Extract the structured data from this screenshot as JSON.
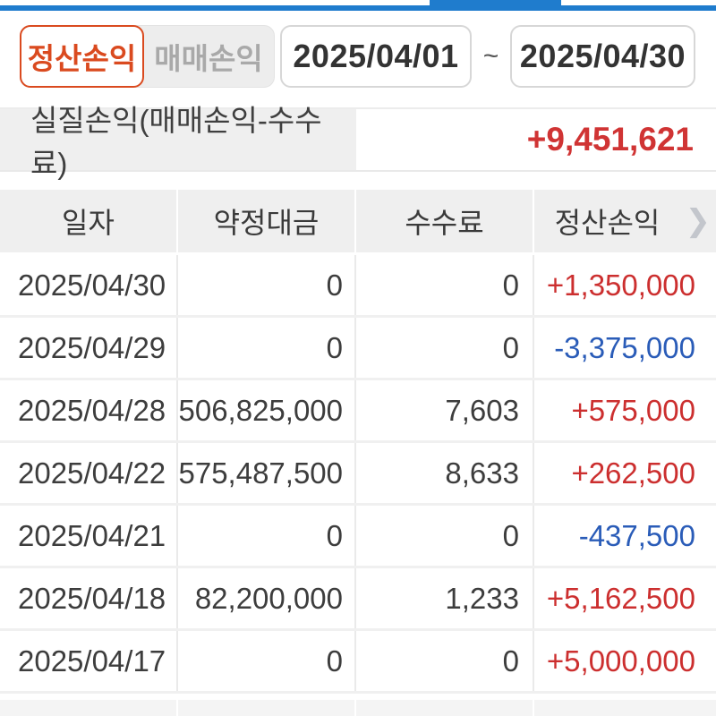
{
  "topbar": {
    "accent_color": "#1f7ccd"
  },
  "tabs": [
    {
      "label": "정산손익",
      "active": true
    },
    {
      "label": "매매손익",
      "active": false
    }
  ],
  "date_range": {
    "start": "2025/04/01",
    "separator": "~",
    "end": "2025/04/30"
  },
  "summary": {
    "label": "실질손익(매매손익-수수료)",
    "value": "+9,451,621"
  },
  "table": {
    "headers": [
      "일자",
      "약정대금",
      "수수료",
      "정산손익"
    ],
    "more_chevron": "❯",
    "rows": [
      {
        "date": "2025/04/30",
        "amount": "0",
        "fee": "0",
        "pl": "+1,350,000",
        "pl_type": "profit"
      },
      {
        "date": "2025/04/29",
        "amount": "0",
        "fee": "0",
        "pl": "-3,375,000",
        "pl_type": "loss"
      },
      {
        "date": "2025/04/28",
        "amount": "506,825,000",
        "fee": "7,603",
        "pl": "+575,000",
        "pl_type": "profit"
      },
      {
        "date": "2025/04/22",
        "amount": "575,487,500",
        "fee": "8,633",
        "pl": "+262,500",
        "pl_type": "profit"
      },
      {
        "date": "2025/04/21",
        "amount": "0",
        "fee": "0",
        "pl": "-437,500",
        "pl_type": "loss"
      },
      {
        "date": "2025/04/18",
        "amount": "82,200,000",
        "fee": "1,233",
        "pl": "+5,162,500",
        "pl_type": "profit"
      },
      {
        "date": "2025/04/17",
        "amount": "0",
        "fee": "0",
        "pl": "+5,000,000",
        "pl_type": "profit"
      }
    ]
  },
  "colors": {
    "profit": "#cc2f2f",
    "loss": "#2a5cb8",
    "accent_orange": "#da4a1f",
    "top_blue": "#1f7ccd",
    "header_bg": "#efefef"
  }
}
